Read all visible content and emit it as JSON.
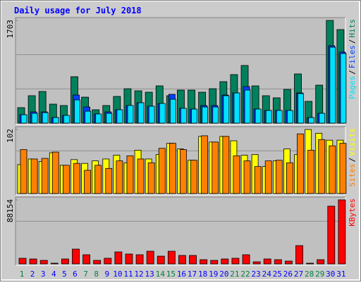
{
  "chart_data": [
    {
      "type": "bar",
      "title": "Daily usage for July 2018",
      "ylim": [
        0,
        1703
      ],
      "yticks": [
        1703
      ],
      "legend_separator": "/",
      "series": [
        {
          "name": "Hits",
          "color": "#00805c",
          "values": [
            257,
            455,
            525,
            315,
            292,
            770,
            431,
            222,
            292,
            443,
            571,
            536,
            513,
            618,
            455,
            548,
            548,
            513,
            571,
            688,
            805,
            956,
            618,
            455,
            420,
            560,
            816,
            361,
            630,
            1703,
            1551
          ]
        },
        {
          "name": "Files",
          "color": "#0040ff",
          "values": [
            140,
            187,
            187,
            93,
            128,
            466,
            268,
            152,
            187,
            222,
            292,
            338,
            280,
            327,
            478,
            245,
            233,
            292,
            292,
            466,
            501,
            606,
            233,
            210,
            210,
            210,
            501,
            93,
            163,
            1283,
            1178
          ]
        },
        {
          "name": "Pages",
          "color": "#00e0ff",
          "values": [
            140,
            163,
            175,
            93,
            128,
            385,
            198,
            152,
            163,
            222,
            292,
            338,
            280,
            327,
            396,
            245,
            233,
            268,
            268,
            455,
            501,
            548,
            233,
            210,
            210,
            210,
            490,
            93,
            163,
            1259,
            1154
          ]
        }
      ]
    },
    {
      "type": "bar",
      "ylim": [
        0,
        102
      ],
      "yticks": [
        102
      ],
      "legend_separator": "/",
      "series": [
        {
          "name": "Visits",
          "color": "#ffff00",
          "values": [
            46,
            55,
            51,
            65,
            45,
            54,
            48,
            52,
            55,
            61,
            49,
            69,
            55,
            62,
            80,
            71,
            53,
            91,
            82,
            91,
            84,
            61,
            62,
            43,
            52,
            71,
            62,
            102,
            96,
            85,
            85
          ]
        },
        {
          "name": "Sites",
          "color": "#ff8000",
          "values": [
            70,
            55,
            56,
            66,
            45,
            48,
            37,
            45,
            40,
            52,
            60,
            55,
            49,
            72,
            80,
            70,
            53,
            92,
            82,
            91,
            60,
            52,
            43,
            52,
            53,
            49,
            95,
            69,
            86,
            76,
            80
          ]
        }
      ]
    },
    {
      "type": "bar",
      "ylim": [
        0,
        88154
      ],
      "yticks": [
        88154
      ],
      "categories": [
        "1",
        "2",
        "3",
        "4",
        "5",
        "6",
        "7",
        "8",
        "9",
        "10",
        "11",
        "12",
        "13",
        "14",
        "15",
        "16",
        "17",
        "18",
        "19",
        "20",
        "21",
        "22",
        "23",
        "24",
        "25",
        "26",
        "27",
        "28",
        "29",
        "30",
        "31"
      ],
      "category_colors": [
        "#008040",
        "#0000ff",
        "#0000ff",
        "#0000ff",
        "#0000ff",
        "#0000ff",
        "#008040",
        "#008040",
        "#0000ff",
        "#0000ff",
        "#0000ff",
        "#0000ff",
        "#0000ff",
        "#008040",
        "#008040",
        "#0000ff",
        "#0000ff",
        "#0000ff",
        "#0000ff",
        "#0000ff",
        "#008040",
        "#008040",
        "#0000ff",
        "#0000ff",
        "#0000ff",
        "#0000ff",
        "#0000ff",
        "#008040",
        "#008040",
        "#0000ff",
        "#0000ff"
      ],
      "series": [
        {
          "name": "KBytes",
          "color": "#ff0000",
          "values": [
            7752,
            6783,
            4845,
            969,
            6783,
            20349,
            12597,
            4845,
            7752,
            16473,
            13566,
            12597,
            17442,
            10659,
            17442,
            11628,
            11628,
            5814,
            4845,
            6783,
            7752,
            12597,
            2907,
            6783,
            5814,
            3876,
            25194,
            969,
            5814,
            79458,
            88154
          ]
        }
      ]
    }
  ]
}
